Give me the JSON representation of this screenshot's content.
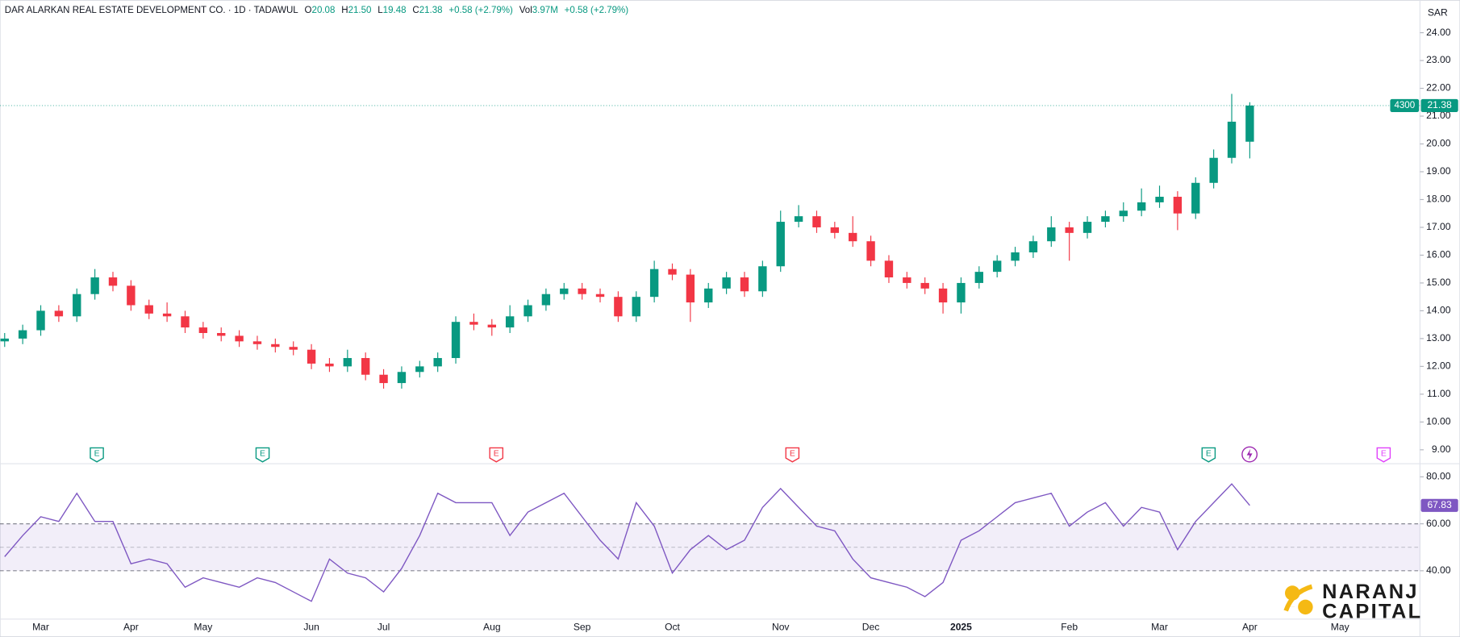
{
  "chart_data": [
    {
      "type": "candlestick",
      "title": "DAR ALARKAN REAL ESTATE DEVELOPMENT CO. · 1D · TADAWUL",
      "header": {
        "open_label": "O",
        "open": "20.08",
        "high_label": "H",
        "high": "21.50",
        "low_label": "L",
        "low": "19.48",
        "close_label": "C",
        "close": "21.38",
        "change": "+0.58 (+2.79%)",
        "volume_label": "Vol",
        "volume": "3.97M",
        "volume_change": "+0.58 (+2.79%)"
      },
      "currency": "SAR",
      "price_tag_label": "4300",
      "categories": [
        null,
        null,
        "Mar",
        null,
        null,
        null,
        null,
        "Apr",
        null,
        null,
        null,
        "May",
        null,
        null,
        null,
        null,
        null,
        "Jun",
        null,
        null,
        null,
        "Jul",
        null,
        null,
        null,
        null,
        null,
        "Aug",
        null,
        null,
        null,
        null,
        "Sep",
        null,
        null,
        null,
        null,
        "Oct",
        null,
        null,
        null,
        null,
        null,
        "Nov",
        null,
        null,
        null,
        null,
        "Dec",
        null,
        null,
        null,
        null,
        "2025",
        null,
        null,
        null,
        null,
        null,
        "Feb",
        null,
        null,
        null,
        null,
        "Mar",
        null,
        null,
        null,
        null,
        "Apr",
        null,
        null,
        null,
        null,
        "May"
      ],
      "open": [
        12.9,
        13.0,
        13.3,
        14.0,
        13.8,
        14.6,
        15.2,
        14.9,
        14.2,
        13.9,
        13.8,
        13.4,
        13.2,
        13.1,
        12.9,
        12.8,
        12.7,
        12.6,
        12.1,
        12.0,
        12.3,
        11.7,
        11.4,
        11.8,
        12.0,
        12.3,
        13.6,
        13.5,
        13.4,
        13.8,
        14.2,
        14.6,
        14.8,
        14.6,
        14.5,
        13.8,
        14.5,
        15.5,
        15.3,
        14.3,
        14.8,
        15.2,
        14.7,
        15.6,
        17.2,
        17.4,
        17.0,
        16.8,
        16.5,
        15.8,
        15.2,
        15.0,
        14.8,
        14.3,
        15.0,
        15.4,
        15.8,
        16.1,
        16.5,
        17.0,
        16.8,
        17.2,
        17.4,
        17.6,
        17.9,
        18.1,
        17.5,
        18.6,
        19.5,
        20.08,
        null,
        null,
        null,
        null,
        null
      ],
      "high": [
        13.2,
        13.5,
        14.2,
        14.2,
        14.8,
        15.5,
        15.4,
        15.1,
        14.4,
        14.3,
        14.0,
        13.6,
        13.4,
        13.3,
        13.1,
        13.0,
        12.9,
        12.8,
        12.3,
        12.6,
        12.5,
        11.9,
        12.0,
        12.2,
        12.5,
        13.8,
        13.9,
        13.7,
        14.2,
        14.4,
        14.8,
        15.0,
        15.0,
        14.8,
        14.7,
        14.7,
        15.8,
        15.7,
        15.5,
        15.0,
        15.4,
        15.4,
        15.8,
        17.6,
        17.8,
        17.6,
        17.2,
        17.4,
        16.7,
        16.0,
        15.4,
        15.2,
        15.0,
        15.2,
        15.6,
        16.0,
        16.3,
        16.7,
        17.4,
        17.2,
        17.4,
        17.6,
        17.9,
        18.4,
        18.5,
        18.3,
        18.8,
        19.8,
        21.8,
        21.5,
        null,
        null,
        null,
        null,
        null
      ],
      "low": [
        12.7,
        12.8,
        13.1,
        13.6,
        13.6,
        14.4,
        14.7,
        14.0,
        13.7,
        13.6,
        13.2,
        13.0,
        12.9,
        12.7,
        12.6,
        12.5,
        12.4,
        11.9,
        11.8,
        11.8,
        11.5,
        11.2,
        11.2,
        11.6,
        11.8,
        12.1,
        13.3,
        13.1,
        13.2,
        13.6,
        14.0,
        14.4,
        14.4,
        14.3,
        13.6,
        13.6,
        14.3,
        15.1,
        13.6,
        14.1,
        14.6,
        14.5,
        14.5,
        15.4,
        17.0,
        16.8,
        16.6,
        16.3,
        15.6,
        15.0,
        14.8,
        14.6,
        13.9,
        13.9,
        14.8,
        15.2,
        15.6,
        15.9,
        16.3,
        15.8,
        16.6,
        17.0,
        17.2,
        17.4,
        17.7,
        16.9,
        17.3,
        18.4,
        19.3,
        19.48,
        null,
        null,
        null,
        null,
        null
      ],
      "close": [
        13.0,
        13.3,
        14.0,
        13.8,
        14.6,
        15.2,
        14.9,
        14.2,
        13.9,
        13.8,
        13.4,
        13.2,
        13.1,
        12.9,
        12.8,
        12.7,
        12.6,
        12.1,
        12.0,
        12.3,
        11.7,
        11.4,
        11.8,
        12.0,
        12.3,
        13.6,
        13.5,
        13.4,
        13.8,
        14.2,
        14.6,
        14.8,
        14.6,
        14.5,
        13.8,
        14.5,
        15.5,
        15.3,
        14.3,
        14.8,
        15.2,
        14.7,
        15.6,
        17.2,
        17.4,
        17.0,
        16.8,
        16.5,
        15.8,
        15.2,
        15.0,
        14.8,
        14.3,
        15.0,
        15.4,
        15.8,
        16.1,
        16.5,
        17.0,
        16.8,
        17.2,
        17.4,
        17.6,
        17.9,
        18.1,
        17.5,
        18.6,
        19.5,
        20.8,
        21.38,
        null,
        null,
        null,
        null,
        null
      ],
      "up_color": "#089981",
      "down_color": "#f23645",
      "ylim": [
        8.5,
        25.17
      ],
      "yticks": [
        {
          "value": 9,
          "label": "9.00"
        },
        {
          "value": 10,
          "label": "10.00"
        },
        {
          "value": 11,
          "label": "11.00"
        },
        {
          "value": 12,
          "label": "12.00"
        },
        {
          "value": 13,
          "label": "13.00"
        },
        {
          "value": 14,
          "label": "14.00"
        },
        {
          "value": 15,
          "label": "15.00"
        },
        {
          "value": 16,
          "label": "16.00"
        },
        {
          "value": 17,
          "label": "17.00"
        },
        {
          "value": 18,
          "label": "18.00"
        },
        {
          "value": 19,
          "label": "19.00"
        },
        {
          "value": 20,
          "label": "20.00"
        },
        {
          "value": 21,
          "label": "21.00"
        },
        {
          "value": 22,
          "label": "22.00"
        },
        {
          "value": 23,
          "label": "23.00"
        },
        {
          "value": 24,
          "label": "24.00"
        }
      ]
    },
    {
      "type": "line",
      "values": [
        46,
        55,
        63,
        61,
        73,
        61,
        61,
        43,
        45,
        43,
        33,
        37,
        35,
        33,
        37,
        35,
        31,
        27,
        45,
        39,
        37,
        31,
        41,
        55,
        73,
        69,
        69,
        69,
        55,
        65,
        69,
        73,
        63,
        53,
        45,
        69,
        59,
        39,
        49,
        55,
        49,
        53,
        67,
        75,
        67,
        59,
        57,
        45,
        37,
        35,
        33,
        29,
        35,
        53,
        57,
        63,
        69,
        71,
        73,
        59,
        65,
        69,
        59,
        67,
        65,
        49,
        61,
        69,
        77,
        67.83,
        null,
        null,
        null,
        null,
        null
      ],
      "color": "#7e57c2",
      "band_color": "rgba(126,87,194,0.1)",
      "levels": [
        60,
        50,
        40
      ],
      "ylim": [
        19.4,
        84.8
      ],
      "yticks": [
        {
          "value": 40,
          "label": "40.00"
        },
        {
          "value": 60,
          "label": "60.00"
        },
        {
          "value": 80,
          "label": "80.00"
        }
      ]
    }
  ],
  "events": [
    "E",
    "E",
    "E",
    "E",
    "E",
    "E"
  ],
  "brand": [
    "NARANJ",
    "CAPITAL"
  ]
}
